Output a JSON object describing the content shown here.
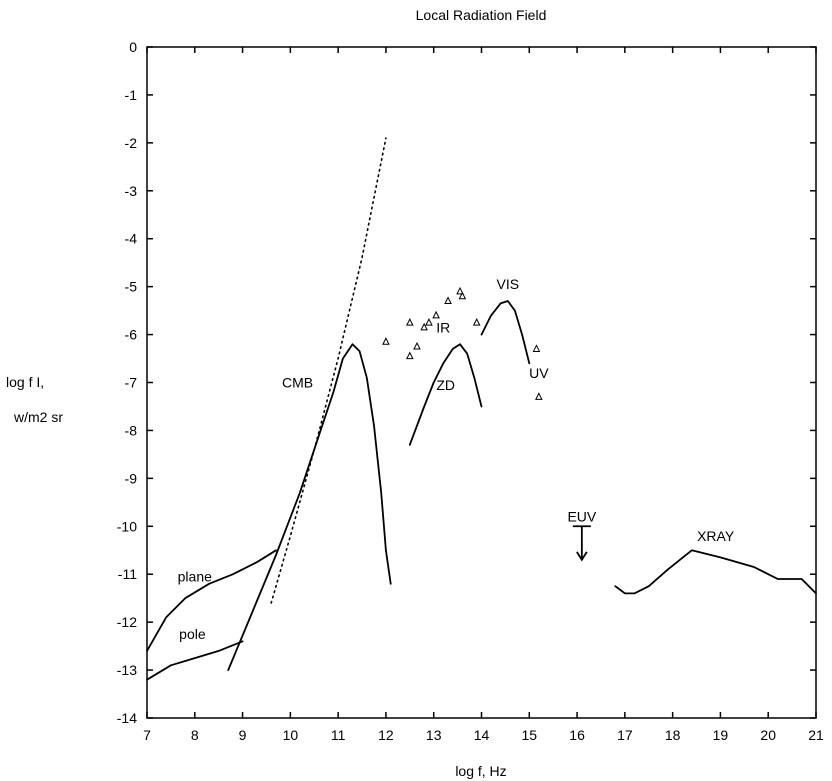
{
  "chart_data": {
    "type": "line",
    "title": "Local Radiation Field",
    "xlabel": "log f, Hz",
    "ylabel_lines": [
      "log f I,",
      "w/m2 sr"
    ],
    "xlim": [
      7,
      21
    ],
    "ylim": [
      -14,
      0
    ],
    "xticks": [
      7,
      8,
      9,
      10,
      11,
      12,
      13,
      14,
      15,
      16,
      17,
      18,
      19,
      20,
      21
    ],
    "yticks": [
      0,
      -1,
      -2,
      -3,
      -4,
      -5,
      -6,
      -7,
      -8,
      -9,
      -10,
      -11,
      -12,
      -13,
      -14
    ],
    "grid": false,
    "series": [
      {
        "name": "CMB",
        "style": "solid",
        "x": [
          8.7,
          9.2,
          9.7,
          10.2,
          10.6,
          10.9,
          11.1,
          11.3,
          11.45,
          11.6,
          11.75,
          11.9,
          12.0,
          12.1
        ],
        "y": [
          -13.0,
          -11.8,
          -10.6,
          -9.3,
          -8.1,
          -7.2,
          -6.5,
          -6.2,
          -6.35,
          -6.9,
          -7.9,
          -9.3,
          -10.5,
          -11.2
        ]
      },
      {
        "name": "",
        "style": "dotted",
        "x": [
          9.6,
          10.0,
          10.5,
          11.0,
          11.5,
          12.0
        ],
        "y": [
          -11.6,
          -10.2,
          -8.4,
          -6.5,
          -4.4,
          -1.9
        ]
      },
      {
        "name": "plane",
        "style": "solid",
        "x": [
          7.0,
          7.4,
          7.8,
          8.3,
          8.8,
          9.3,
          9.7
        ],
        "y": [
          -12.6,
          -11.9,
          -11.5,
          -11.2,
          -11.0,
          -10.75,
          -10.5
        ]
      },
      {
        "name": "pole",
        "style": "solid",
        "x": [
          7.0,
          7.5,
          8.0,
          8.5,
          9.0
        ],
        "y": [
          -13.2,
          -12.9,
          -12.75,
          -12.6,
          -12.4
        ]
      },
      {
        "name": "ZD",
        "style": "solid",
        "x": [
          12.5,
          12.8,
          13.0,
          13.2,
          13.4,
          13.55,
          13.7,
          13.85,
          14.0
        ],
        "y": [
          -8.3,
          -7.5,
          -7.0,
          -6.6,
          -6.3,
          -6.2,
          -6.4,
          -6.9,
          -7.5
        ]
      },
      {
        "name": "VIS",
        "style": "solid",
        "x": [
          14.0,
          14.2,
          14.4,
          14.55,
          14.7,
          14.85,
          15.0
        ],
        "y": [
          -6.0,
          -5.6,
          -5.35,
          -5.3,
          -5.5,
          -6.0,
          -6.6
        ]
      },
      {
        "name": "XRAY",
        "style": "solid",
        "x": [
          16.8,
          17.0,
          17.2,
          17.5,
          17.9,
          18.4,
          19.0,
          19.7,
          20.2,
          20.7,
          21.0
        ],
        "y": [
          -11.25,
          -11.4,
          -11.4,
          -11.25,
          -10.9,
          -10.5,
          -10.65,
          -10.85,
          -11.1,
          -11.1,
          -11.4
        ]
      }
    ],
    "points": {
      "marker": "triangle",
      "x": [
        12.0,
        12.5,
        12.5,
        12.65,
        12.8,
        12.9,
        13.05,
        13.3,
        13.55,
        13.6,
        13.9,
        15.15,
        15.2
      ],
      "y": [
        -6.15,
        -5.75,
        -6.45,
        -6.25,
        -5.85,
        -5.75,
        -5.6,
        -5.3,
        -5.1,
        -5.2,
        -5.75,
        -6.3,
        -7.3
      ]
    },
    "upper_limits": [
      {
        "label": "EUV",
        "x": 16.1,
        "y": -10.0,
        "y_end": -10.7
      }
    ],
    "annotations": [
      {
        "text": "CMB",
        "x": 10.15,
        "y": -7.0
      },
      {
        "text": "plane",
        "x": 8.0,
        "y": -11.05
      },
      {
        "text": "pole",
        "x": 7.95,
        "y": -12.25
      },
      {
        "text": "IR",
        "x": 13.2,
        "y": -5.85
      },
      {
        "text": "ZD",
        "x": 13.25,
        "y": -7.05
      },
      {
        "text": "VIS",
        "x": 14.55,
        "y": -4.95
      },
      {
        "text": "UV",
        "x": 15.2,
        "y": -6.8
      },
      {
        "text": "EUV",
        "x": 16.1,
        "y": -9.8
      },
      {
        "text": "XRAY",
        "x": 18.9,
        "y": -10.2
      }
    ]
  }
}
